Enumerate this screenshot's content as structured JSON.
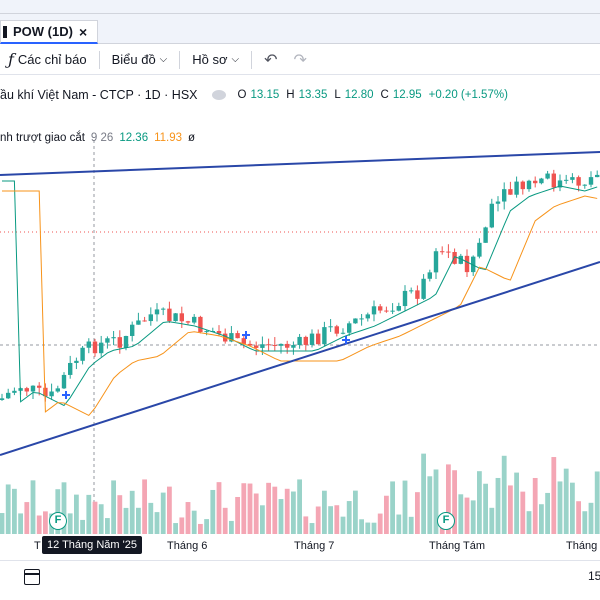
{
  "tab": {
    "label": "POW (1D)",
    "close": "×"
  },
  "toolbar": {
    "indicators_label": "Các chỉ báo",
    "chart_type_label": "Biểu đồ",
    "profile_label": "Hồ sơ"
  },
  "legend": {
    "title": "ầu khí Việt Nam - CTCP · 1D · HSX",
    "ohlc": [
      {
        "k": "O",
        "v": "13.15"
      },
      {
        "k": "H",
        "v": "13.35"
      },
      {
        "k": "L",
        "v": "12.80"
      },
      {
        "k": "C",
        "v": "12.95"
      }
    ],
    "change": "+0.20 (+1.57%)",
    "indicator_name": "nh trượt giao cắt",
    "indicator_v1": "9 26",
    "indicator_v2": "12.36",
    "indicator_v3": "11.93",
    "indicator_v4": "ø"
  },
  "time_axis": {
    "active_label": "12 Tháng Năm '25",
    "labels": [
      "T",
      "Tháng 6",
      "Tháng 7",
      "Tháng Tám",
      "Tháng"
    ]
  },
  "bottom": {
    "range_label": "15"
  },
  "badges": [
    "F",
    "F"
  ],
  "colors": {
    "up": "#26a69a",
    "down": "#ef5350",
    "vol_up": "#9ad3c9",
    "vol_down": "#f4a6b4",
    "ma_fast": "#089981",
    "ma_slow": "#f7931a",
    "trendline": "#2a47a8",
    "accent": "#2962ff"
  },
  "icons": [
    "fx-icon",
    "chevron-down-icon",
    "undo-icon",
    "redo-icon",
    "calendar-icon",
    "close-icon"
  ]
}
